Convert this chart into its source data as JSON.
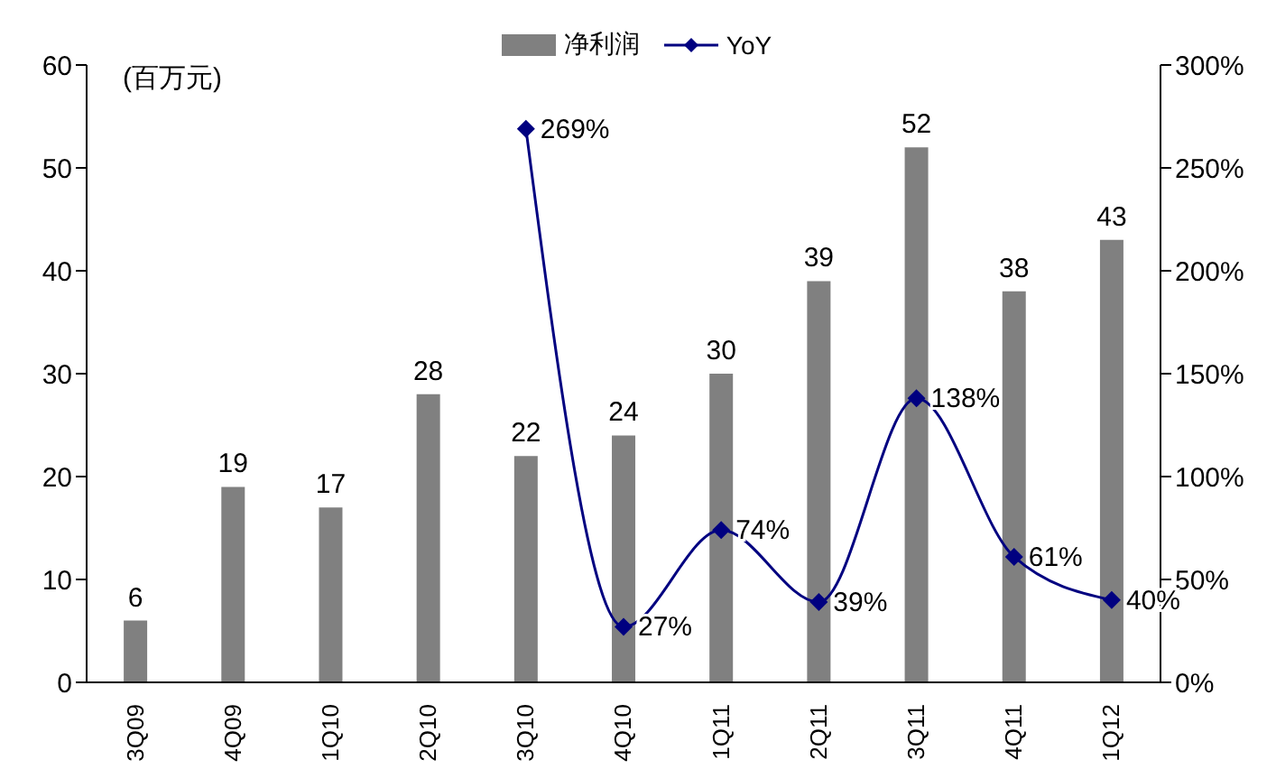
{
  "chart_data": {
    "type": "bar",
    "categories": [
      "3Q09",
      "4Q09",
      "1Q10",
      "2Q10",
      "3Q10",
      "4Q10",
      "1Q11",
      "2Q11",
      "3Q11",
      "4Q11",
      "1Q12"
    ],
    "series": [
      {
        "name": "净利润",
        "color": "#808080",
        "values": [
          6,
          19,
          17,
          28,
          22,
          24,
          30,
          39,
          52,
          38,
          43
        ],
        "data_labels": true
      },
      {
        "name": "YoY",
        "type": "line",
        "axis": "y2",
        "color": "#000080",
        "marker": "diamond",
        "values": [
          null,
          null,
          null,
          null,
          269,
          27,
          74,
          39,
          138,
          61,
          40
        ],
        "value_labels": [
          null,
          null,
          null,
          null,
          "269%",
          "27%",
          "74%",
          "39%",
          "138%",
          "61%",
          "40%"
        ]
      }
    ],
    "ylim": [
      0,
      60
    ],
    "yticks": [
      0,
      10,
      20,
      30,
      40,
      50,
      60
    ],
    "y2lim": [
      0,
      300
    ],
    "y2ticks": [
      {
        "value": 0,
        "label": "0%"
      },
      {
        "value": 50,
        "label": "50%"
      },
      {
        "value": 100,
        "label": "100%"
      },
      {
        "value": 150,
        "label": "150%"
      },
      {
        "value": 200,
        "label": "200%"
      },
      {
        "value": 250,
        "label": "250%"
      },
      {
        "value": 300,
        "label": "300%"
      }
    ],
    "annotations": [
      "(百万元)"
    ],
    "legend": "top"
  }
}
